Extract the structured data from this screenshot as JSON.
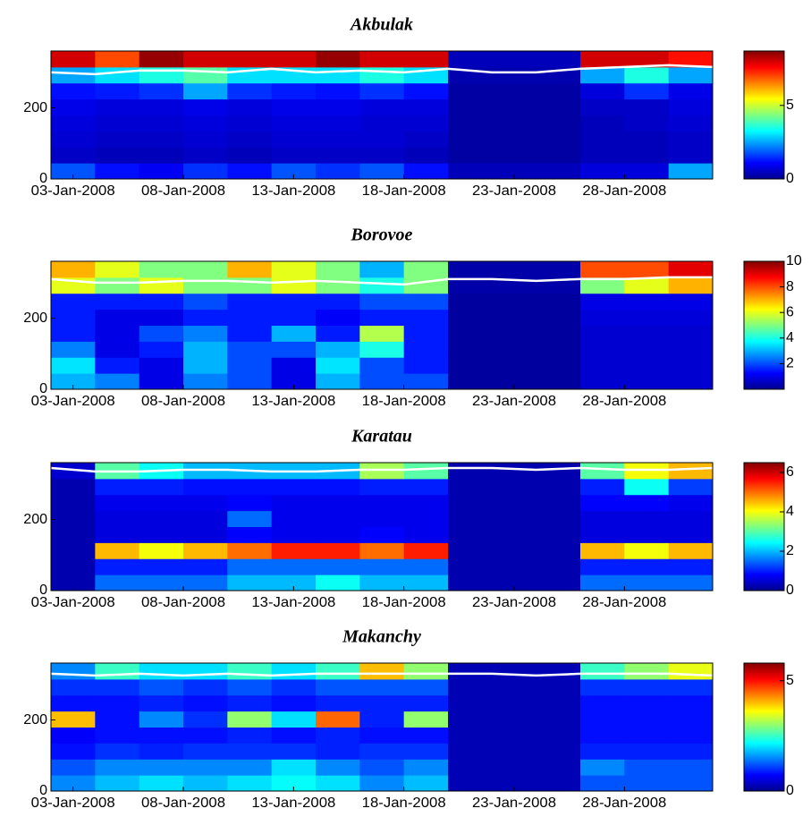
{
  "chart_data": [
    {
      "type": "heatmap",
      "title": "Akbulak",
      "colormap": "jet",
      "xlim": [
        2,
        32
      ],
      "xticks": [
        {
          "value": 3,
          "label": "03-Jan-2008"
        },
        {
          "value": 8,
          "label": "08-Jan-2008"
        },
        {
          "value": 13,
          "label": "13-Jan-2008"
        },
        {
          "value": 18,
          "label": "18-Jan-2008"
        },
        {
          "value": 23,
          "label": "23-Jan-2008"
        },
        {
          "value": 28,
          "label": "28-Jan-2008"
        }
      ],
      "ylim": [
        0,
        360
      ],
      "yticks": [
        0,
        200
      ],
      "xbins": [
        2,
        4,
        6,
        8,
        10,
        12,
        14,
        16,
        18,
        20,
        22,
        24,
        26,
        28,
        30,
        32
      ],
      "ybins": [
        0,
        45,
        90,
        135,
        180,
        225,
        270,
        315,
        360
      ],
      "clim": [
        0,
        8.7
      ],
      "cticks": [
        0,
        5
      ],
      "z": [
        [
          1.8,
          1.2,
          1,
          1.5,
          1.2,
          1.8,
          1.5,
          1.8,
          1.2,
          0.5,
          0.5,
          0.5,
          0.8,
          0.8,
          2.5
        ],
        [
          0.6,
          0.5,
          0.5,
          0.6,
          0.5,
          0.6,
          0.6,
          0.6,
          0.5,
          0.3,
          0.3,
          0.3,
          0.5,
          0.5,
          0.6
        ],
        [
          0.7,
          0.6,
          0.6,
          0.7,
          0.6,
          0.7,
          0.7,
          0.7,
          0.6,
          0.3,
          0.3,
          0.3,
          0.5,
          0.5,
          0.6
        ],
        [
          0.8,
          0.7,
          0.7,
          0.8,
          0.7,
          0.8,
          0.8,
          0.7,
          0.7,
          0.3,
          0.3,
          0.3,
          0.5,
          0.6,
          0.7
        ],
        [
          0.9,
          0.8,
          0.8,
          0.9,
          0.8,
          0.9,
          0.9,
          0.8,
          0.8,
          0.3,
          0.3,
          0.3,
          0.6,
          0.6,
          0.8
        ],
        [
          1.2,
          1.3,
          1.5,
          2.5,
          1.5,
          1.3,
          1.2,
          1.5,
          1.2,
          0.3,
          0.3,
          0.3,
          0.8,
          1.5,
          0.9
        ],
        [
          2.5,
          3,
          3.5,
          4,
          3,
          3,
          3,
          3.5,
          3,
          0.4,
          0.4,
          0.4,
          2.5,
          3.5,
          2.5
        ],
        [
          8,
          7,
          8.5,
          8,
          8,
          8,
          8.5,
          8,
          8,
          0.5,
          0.5,
          0.5,
          8,
          8,
          7.5
        ]
      ],
      "line": {
        "color": "#ffffff",
        "x": [
          2,
          4,
          6,
          8,
          10,
          12,
          14,
          16,
          18,
          20,
          22,
          24,
          26,
          28,
          30,
          32
        ],
        "values": [
          300,
          295,
          305,
          305,
          300,
          310,
          300,
          305,
          300,
          310,
          300,
          300,
          310,
          315,
          320,
          315
        ]
      }
    },
    {
      "type": "heatmap",
      "title": "Borovoe",
      "colormap": "jet",
      "xlim": [
        2,
        32
      ],
      "xticks": [
        {
          "value": 3,
          "label": "03-Jan-2008"
        },
        {
          "value": 8,
          "label": "08-Jan-2008"
        },
        {
          "value": 13,
          "label": "13-Jan-2008"
        },
        {
          "value": 18,
          "label": "18-Jan-2008"
        },
        {
          "value": 23,
          "label": "23-Jan-2008"
        },
        {
          "value": 28,
          "label": "28-Jan-2008"
        }
      ],
      "ylim": [
        0,
        360
      ],
      "yticks": [
        0,
        200
      ],
      "xbins": [
        2,
        4,
        6,
        8,
        10,
        12,
        14,
        16,
        18,
        20,
        22,
        24,
        26,
        28,
        30,
        32
      ],
      "ybins": [
        0,
        45,
        90,
        135,
        180,
        225,
        270,
        315,
        360
      ],
      "clim": [
        0,
        10
      ],
      "cticks": [
        2,
        4,
        6,
        8,
        10
      ],
      "z": [
        [
          3,
          2.5,
          1,
          2.5,
          2,
          1,
          3,
          2,
          2,
          0.3,
          0.3,
          0.3,
          0.8,
          0.8,
          0.8
        ],
        [
          3.5,
          1.5,
          1,
          3,
          2,
          1,
          3.5,
          2,
          1.5,
          0.3,
          0.3,
          0.3,
          0.8,
          0.8,
          0.8
        ],
        [
          2.5,
          1,
          1.5,
          3,
          2,
          2,
          3,
          4,
          1.5,
          0.3,
          0.3,
          0.3,
          0.8,
          0.8,
          0.8
        ],
        [
          1.5,
          1,
          2,
          2.5,
          1.5,
          3,
          1.5,
          5.5,
          1.5,
          0.3,
          0.3,
          0.3,
          0.8,
          0.8,
          0.8
        ],
        [
          1.5,
          1,
          1,
          1.5,
          1.5,
          1.5,
          1.2,
          1.5,
          1.5,
          0.3,
          0.3,
          0.3,
          0.9,
          0.9,
          0.9
        ],
        [
          1.5,
          1.5,
          1.5,
          2,
          1.5,
          1.5,
          1.5,
          2,
          2,
          0.3,
          0.3,
          0.3,
          1,
          1,
          1
        ],
        [
          6,
          5,
          6,
          5,
          5,
          6,
          5,
          4,
          5,
          0.4,
          0.4,
          0.4,
          5,
          6,
          7
        ],
        [
          7,
          6,
          5,
          5,
          7,
          6,
          5,
          3,
          5,
          0.4,
          0.4,
          0.4,
          8,
          8,
          9
        ]
      ],
      "line": {
        "color": "#ffffff",
        "x": [
          2,
          4,
          6,
          8,
          10,
          12,
          14,
          16,
          18,
          20,
          22,
          24,
          26,
          28,
          30,
          32
        ],
        "values": [
          310,
          300,
          300,
          305,
          305,
          300,
          305,
          300,
          295,
          310,
          310,
          305,
          310,
          310,
          315,
          315
        ]
      }
    },
    {
      "type": "heatmap",
      "title": "Karatau",
      "colormap": "jet",
      "xlim": [
        2,
        32
      ],
      "xticks": [
        {
          "value": 3,
          "label": "03-Jan-2008"
        },
        {
          "value": 8,
          "label": "08-Jan-2008"
        },
        {
          "value": 13,
          "label": "13-Jan-2008"
        },
        {
          "value": 18,
          "label": "18-Jan-2008"
        },
        {
          "value": 23,
          "label": "23-Jan-2008"
        },
        {
          "value": 28,
          "label": "28-Jan-2008"
        }
      ],
      "ylim": [
        0,
        360
      ],
      "yticks": [
        0,
        200
      ],
      "xbins": [
        2,
        4,
        6,
        8,
        10,
        12,
        14,
        16,
        18,
        20,
        22,
        24,
        26,
        28,
        30,
        32
      ],
      "ybins": [
        0,
        45,
        90,
        135,
        180,
        225,
        270,
        315,
        360
      ],
      "clim": [
        0,
        6.5
      ],
      "cticks": [
        0,
        2,
        4,
        6
      ],
      "z": [
        [
          0.3,
          1.5,
          1.5,
          1.5,
          2,
          2,
          2.5,
          2,
          2,
          0.3,
          0.3,
          0.3,
          1.5,
          1.5,
          1.5
        ],
        [
          0.3,
          1,
          1,
          1,
          1.5,
          1.5,
          1.5,
          1.5,
          1.5,
          0.3,
          0.3,
          0.3,
          1,
          1,
          1
        ],
        [
          0.3,
          4.5,
          4,
          4.5,
          5,
          5.5,
          5.5,
          5,
          5.5,
          0.3,
          0.3,
          0.3,
          4.5,
          4,
          4.5
        ],
        [
          0.3,
          0.6,
          0.6,
          0.6,
          0.8,
          0.7,
          0.7,
          0.8,
          0.7,
          0.3,
          0.3,
          0.3,
          0.6,
          0.6,
          0.6
        ],
        [
          0.3,
          0.6,
          0.6,
          0.6,
          1.5,
          0.7,
          0.7,
          0.7,
          0.7,
          0.3,
          0.3,
          0.3,
          0.6,
          0.6,
          0.6
        ],
        [
          0.3,
          0.7,
          0.7,
          0.7,
          0.8,
          0.7,
          0.7,
          0.7,
          0.7,
          0.3,
          0.3,
          0.3,
          0.8,
          0.8,
          0.7
        ],
        [
          0.3,
          1,
          1,
          0.9,
          0.9,
          0.9,
          0.9,
          1,
          1,
          0.3,
          0.3,
          0.3,
          1,
          2.5,
          1.2
        ],
        [
          0.5,
          3,
          2.5,
          2,
          2,
          2,
          2,
          3.5,
          3,
          0.3,
          0.3,
          0.3,
          3,
          4,
          4.5
        ]
      ],
      "line": {
        "color": "#ffffff",
        "x": [
          2,
          4,
          6,
          8,
          10,
          12,
          14,
          16,
          18,
          20,
          22,
          24,
          26,
          28,
          30,
          32
        ],
        "values": [
          345,
          335,
          335,
          340,
          340,
          335,
          335,
          340,
          340,
          345,
          345,
          340,
          345,
          340,
          340,
          345
        ]
      }
    },
    {
      "type": "heatmap",
      "title": "Makanchy",
      "colormap": "jet",
      "xlim": [
        2,
        32
      ],
      "xticks": [
        {
          "value": 3,
          "label": "03-Jan-2008"
        },
        {
          "value": 8,
          "label": "08-Jan-2008"
        },
        {
          "value": 13,
          "label": "13-Jan-2008"
        },
        {
          "value": 18,
          "label": "18-Jan-2008"
        },
        {
          "value": 23,
          "label": "23-Jan-2008"
        },
        {
          "value": 28,
          "label": "28-Jan-2008"
        }
      ],
      "ylim": [
        0,
        360
      ],
      "yticks": [
        0,
        200
      ],
      "xbins": [
        2,
        4,
        6,
        8,
        10,
        12,
        14,
        16,
        18,
        20,
        22,
        24,
        26,
        28,
        30,
        32
      ],
      "ybins": [
        0,
        45,
        90,
        135,
        180,
        225,
        270,
        315,
        360
      ],
      "clim": [
        0,
        5.8
      ],
      "cticks": [
        0,
        5
      ],
      "z": [
        [
          1.5,
          1.8,
          2,
          1.8,
          2,
          2.2,
          2,
          1.5,
          1.8,
          0.3,
          0.3,
          0.3,
          1.2,
          1.2,
          1.2
        ],
        [
          1.2,
          1.5,
          1.5,
          1.5,
          1.5,
          2,
          1.5,
          1.2,
          1.5,
          0.3,
          0.3,
          0.3,
          1.5,
          1.2,
          1.2
        ],
        [
          0.8,
          1,
          0.9,
          1,
          1,
          1,
          0.9,
          1,
          1,
          0.3,
          0.3,
          0.3,
          0.9,
          0.9,
          0.9
        ],
        [
          0.7,
          0.8,
          0.8,
          0.8,
          0.9,
          0.8,
          0.9,
          0.8,
          0.8,
          0.3,
          0.3,
          0.3,
          0.8,
          0.8,
          0.8
        ],
        [
          4,
          0.8,
          1.5,
          1,
          3,
          2,
          4.5,
          0.9,
          3,
          0.3,
          0.3,
          0.3,
          0.8,
          0.8,
          0.8
        ],
        [
          0.8,
          0.8,
          0.9,
          0.8,
          0.9,
          0.8,
          0.9,
          0.9,
          0.9,
          0.3,
          0.3,
          0.3,
          0.8,
          0.8,
          0.8
        ],
        [
          1,
          1,
          1.2,
          1,
          1.2,
          1,
          1.2,
          1.2,
          1.2,
          0.3,
          0.3,
          0.3,
          1,
          1,
          1
        ],
        [
          1.5,
          2.5,
          2,
          2,
          2.5,
          2,
          2.5,
          4,
          3,
          0.3,
          0.3,
          0.3,
          2.5,
          3,
          3.5
        ]
      ],
      "line": {
        "color": "#ffffff",
        "x": [
          2,
          4,
          6,
          8,
          10,
          12,
          14,
          16,
          18,
          20,
          22,
          24,
          26,
          28,
          30,
          32
        ],
        "values": [
          330,
          325,
          330,
          325,
          330,
          325,
          330,
          330,
          330,
          330,
          330,
          325,
          330,
          330,
          330,
          325
        ]
      }
    }
  ]
}
